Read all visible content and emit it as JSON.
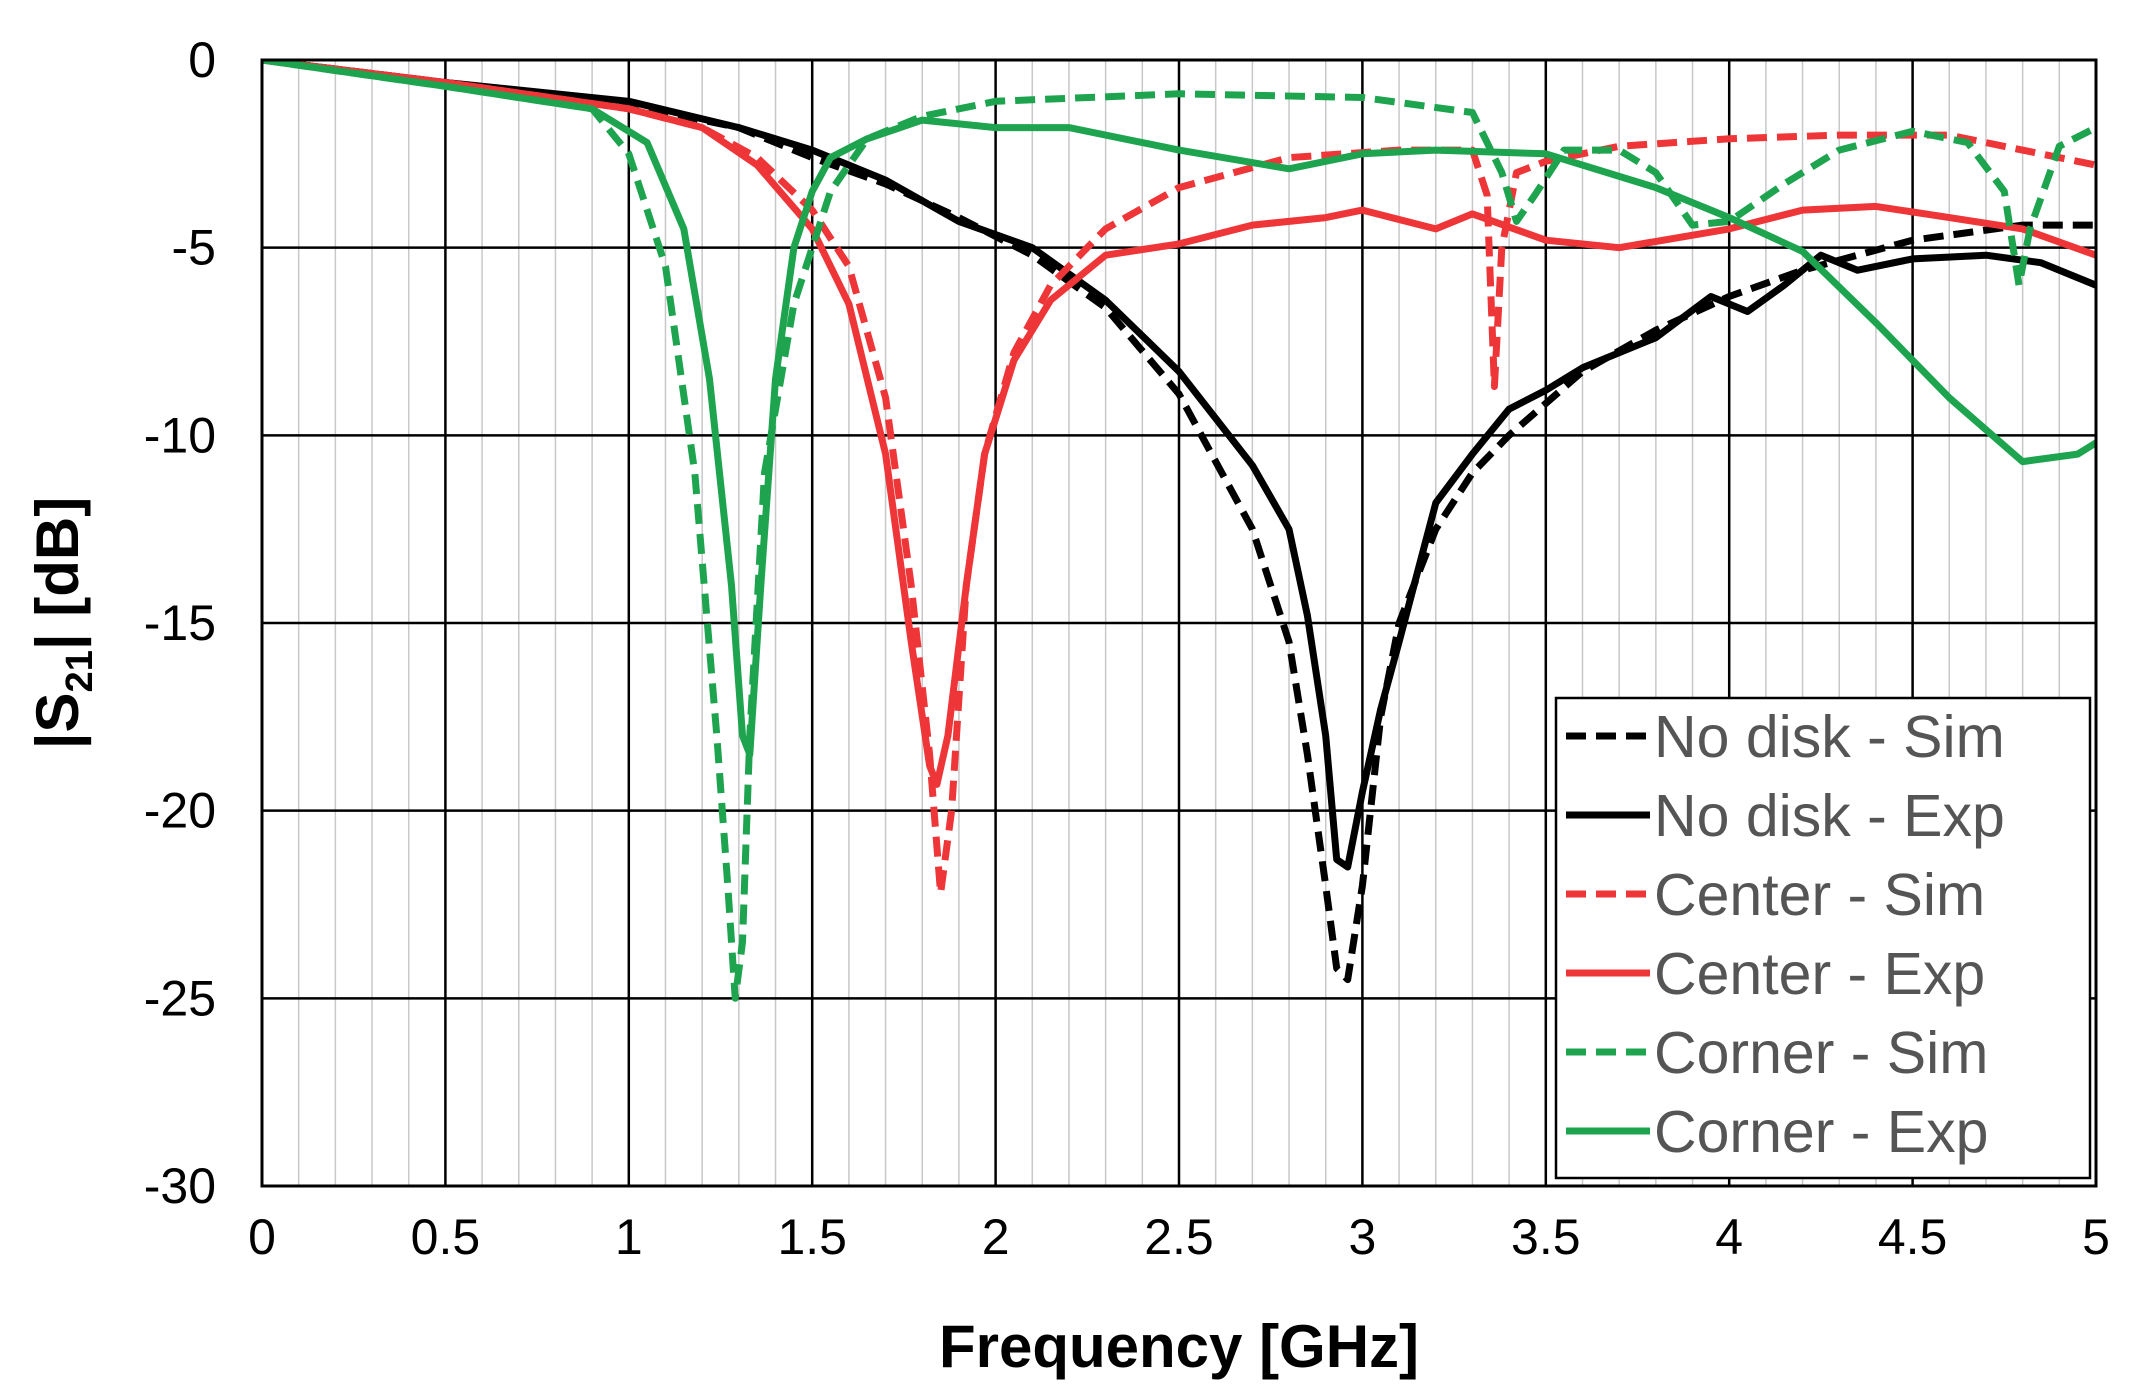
{
  "chart_data": {
    "type": "line",
    "title": "",
    "xlabel": "Frequency [GHz]",
    "ylabel": {
      "prefix": "|S",
      "subscript": "21",
      "suffix": "| [dB]"
    },
    "xlim": [
      0,
      5
    ],
    "ylim": [
      -30,
      0
    ],
    "x_ticks": [
      0,
      0.5,
      1,
      1.5,
      2,
      2.5,
      3,
      3.5,
      4,
      4.5,
      5
    ],
    "x_tick_labels": [
      "0",
      "0.5",
      "1",
      "1.5",
      "2",
      "2.5",
      "3",
      "3.5",
      "4",
      "4.5",
      "5"
    ],
    "y_ticks": [
      0,
      -5,
      -10,
      -15,
      -20,
      -25,
      -30
    ],
    "y_tick_labels": [
      "0",
      "-5",
      "-10",
      "-15",
      "-20",
      "-25",
      "-30"
    ],
    "minor_x_step": 0.1,
    "grid": true,
    "legend_position": "bottom-right",
    "series": [
      {
        "name": "No disk - Sim",
        "color": "#000000",
        "dashed": true,
        "points": [
          [
            0,
            0
          ],
          [
            0.5,
            -0.6
          ],
          [
            1,
            -1.2
          ],
          [
            1.3,
            -1.8
          ],
          [
            1.5,
            -2.6
          ],
          [
            1.7,
            -3.3
          ],
          [
            1.9,
            -4.2
          ],
          [
            2.1,
            -5.2
          ],
          [
            2.3,
            -6.6
          ],
          [
            2.5,
            -8.9
          ],
          [
            2.7,
            -12.5
          ],
          [
            2.8,
            -15.5
          ],
          [
            2.85,
            -18.5
          ],
          [
            2.9,
            -22
          ],
          [
            2.93,
            -24.2
          ],
          [
            2.96,
            -24.5
          ],
          [
            3.0,
            -22
          ],
          [
            3.05,
            -17.5
          ],
          [
            3.1,
            -15
          ],
          [
            3.2,
            -12.5
          ],
          [
            3.3,
            -11
          ],
          [
            3.4,
            -10
          ],
          [
            3.6,
            -8.3
          ],
          [
            3.8,
            -7.2
          ],
          [
            4.0,
            -6.3
          ],
          [
            4.2,
            -5.6
          ],
          [
            4.5,
            -4.8
          ],
          [
            4.8,
            -4.4
          ],
          [
            5,
            -4.4
          ]
        ]
      },
      {
        "name": "No disk - Exp",
        "color": "#000000",
        "dashed": false,
        "points": [
          [
            0,
            0
          ],
          [
            0.5,
            -0.6
          ],
          [
            1,
            -1.1
          ],
          [
            1.3,
            -1.8
          ],
          [
            1.5,
            -2.4
          ],
          [
            1.7,
            -3.2
          ],
          [
            1.9,
            -4.3
          ],
          [
            2.1,
            -5.0
          ],
          [
            2.3,
            -6.4
          ],
          [
            2.5,
            -8.3
          ],
          [
            2.7,
            -10.8
          ],
          [
            2.8,
            -12.5
          ],
          [
            2.85,
            -14.8
          ],
          [
            2.9,
            -18
          ],
          [
            2.93,
            -21.3
          ],
          [
            2.96,
            -21.5
          ],
          [
            3.0,
            -19.5
          ],
          [
            3.05,
            -17.3
          ],
          [
            3.1,
            -15.5
          ],
          [
            3.2,
            -11.8
          ],
          [
            3.3,
            -10.5
          ],
          [
            3.4,
            -9.3
          ],
          [
            3.5,
            -8.8
          ],
          [
            3.6,
            -8.2
          ],
          [
            3.8,
            -7.4
          ],
          [
            3.95,
            -6.3
          ],
          [
            4.05,
            -6.7
          ],
          [
            4.15,
            -6.0
          ],
          [
            4.25,
            -5.2
          ],
          [
            4.35,
            -5.6
          ],
          [
            4.5,
            -5.3
          ],
          [
            4.7,
            -5.2
          ],
          [
            4.85,
            -5.4
          ],
          [
            5,
            -6.0
          ]
        ]
      },
      {
        "name": "Center - Sim",
        "color": "#ee3538",
        "dashed": true,
        "points": [
          [
            0,
            0
          ],
          [
            0.5,
            -0.6
          ],
          [
            1,
            -1.3
          ],
          [
            1.2,
            -1.8
          ],
          [
            1.35,
            -2.6
          ],
          [
            1.5,
            -4.0
          ],
          [
            1.6,
            -5.5
          ],
          [
            1.7,
            -9.0
          ],
          [
            1.77,
            -14
          ],
          [
            1.82,
            -18.5
          ],
          [
            1.85,
            -22.2
          ],
          [
            1.88,
            -20
          ],
          [
            1.92,
            -14
          ],
          [
            1.97,
            -10.5
          ],
          [
            2.05,
            -7.8
          ],
          [
            2.15,
            -6.0
          ],
          [
            2.3,
            -4.5
          ],
          [
            2.5,
            -3.4
          ],
          [
            2.8,
            -2.6
          ],
          [
            3.1,
            -2.4
          ],
          [
            3.3,
            -2.4
          ],
          [
            3.34,
            -3.6
          ],
          [
            3.36,
            -8.7
          ],
          [
            3.38,
            -5.0
          ],
          [
            3.42,
            -3.0
          ],
          [
            3.5,
            -2.7
          ],
          [
            3.7,
            -2.3
          ],
          [
            4.0,
            -2.1
          ],
          [
            4.3,
            -2.0
          ],
          [
            4.6,
            -2.0
          ],
          [
            5,
            -2.8
          ]
        ]
      },
      {
        "name": "Center - Exp",
        "color": "#ee3538",
        "dashed": false,
        "points": [
          [
            0,
            0
          ],
          [
            0.5,
            -0.6
          ],
          [
            1,
            -1.3
          ],
          [
            1.2,
            -1.8
          ],
          [
            1.35,
            -2.8
          ],
          [
            1.5,
            -4.5
          ],
          [
            1.6,
            -6.5
          ],
          [
            1.7,
            -10.5
          ],
          [
            1.77,
            -15.5
          ],
          [
            1.82,
            -18.8
          ],
          [
            1.84,
            -19.3
          ],
          [
            1.87,
            -18
          ],
          [
            1.92,
            -14
          ],
          [
            1.97,
            -10.5
          ],
          [
            2.05,
            -8.0
          ],
          [
            2.15,
            -6.4
          ],
          [
            2.3,
            -5.2
          ],
          [
            2.5,
            -4.9
          ],
          [
            2.7,
            -4.4
          ],
          [
            2.9,
            -4.2
          ],
          [
            3.0,
            -4.0
          ],
          [
            3.2,
            -4.5
          ],
          [
            3.3,
            -4.1
          ],
          [
            3.5,
            -4.8
          ],
          [
            3.7,
            -5.0
          ],
          [
            4.0,
            -4.5
          ],
          [
            4.2,
            -4.0
          ],
          [
            4.4,
            -3.9
          ],
          [
            4.6,
            -4.2
          ],
          [
            4.8,
            -4.5
          ],
          [
            5,
            -5.2
          ]
        ]
      },
      {
        "name": "Corner - Sim",
        "color": "#1ea44f",
        "dashed": true,
        "points": [
          [
            0,
            0
          ],
          [
            0.5,
            -0.7
          ],
          [
            0.9,
            -1.3
          ],
          [
            1.0,
            -2.5
          ],
          [
            1.1,
            -5.5
          ],
          [
            1.18,
            -11
          ],
          [
            1.24,
            -18
          ],
          [
            1.27,
            -22
          ],
          [
            1.29,
            -25
          ],
          [
            1.31,
            -23.5
          ],
          [
            1.33,
            -18
          ],
          [
            1.37,
            -11
          ],
          [
            1.45,
            -6.5
          ],
          [
            1.55,
            -3.5
          ],
          [
            1.65,
            -2.1
          ],
          [
            1.8,
            -1.5
          ],
          [
            2.0,
            -1.1
          ],
          [
            2.5,
            -0.9
          ],
          [
            3.0,
            -1.0
          ],
          [
            3.3,
            -1.4
          ],
          [
            3.38,
            -3.0
          ],
          [
            3.42,
            -4.3
          ],
          [
            3.47,
            -3.6
          ],
          [
            3.55,
            -2.4
          ],
          [
            3.7,
            -2.4
          ],
          [
            3.8,
            -3.0
          ],
          [
            3.9,
            -4.4
          ],
          [
            4.0,
            -4.3
          ],
          [
            4.15,
            -3.3
          ],
          [
            4.3,
            -2.4
          ],
          [
            4.5,
            -1.9
          ],
          [
            4.65,
            -2.2
          ],
          [
            4.75,
            -3.5
          ],
          [
            4.79,
            -6.0
          ],
          [
            4.82,
            -4.5
          ],
          [
            4.9,
            -2.3
          ],
          [
            5,
            -1.8
          ]
        ]
      },
      {
        "name": "Corner - Exp",
        "color": "#1ea44f",
        "dashed": false,
        "points": [
          [
            0,
            0
          ],
          [
            0.5,
            -0.7
          ],
          [
            0.9,
            -1.3
          ],
          [
            1.05,
            -2.2
          ],
          [
            1.15,
            -4.5
          ],
          [
            1.22,
            -8.5
          ],
          [
            1.28,
            -14
          ],
          [
            1.31,
            -18
          ],
          [
            1.33,
            -18.5
          ],
          [
            1.36,
            -14
          ],
          [
            1.4,
            -8.5
          ],
          [
            1.45,
            -5.0
          ],
          [
            1.5,
            -3.5
          ],
          [
            1.55,
            -2.6
          ],
          [
            1.65,
            -2.1
          ],
          [
            1.8,
            -1.6
          ],
          [
            2.0,
            -1.8
          ],
          [
            2.2,
            -1.8
          ],
          [
            2.5,
            -2.4
          ],
          [
            2.8,
            -2.9
          ],
          [
            3.0,
            -2.5
          ],
          [
            3.2,
            -2.4
          ],
          [
            3.5,
            -2.5
          ],
          [
            3.8,
            -3.4
          ],
          [
            4.0,
            -4.2
          ],
          [
            4.2,
            -5.1
          ],
          [
            4.4,
            -7.0
          ],
          [
            4.6,
            -9.0
          ],
          [
            4.8,
            -10.7
          ],
          [
            4.95,
            -10.5
          ],
          [
            5,
            -10.2
          ]
        ]
      }
    ]
  }
}
